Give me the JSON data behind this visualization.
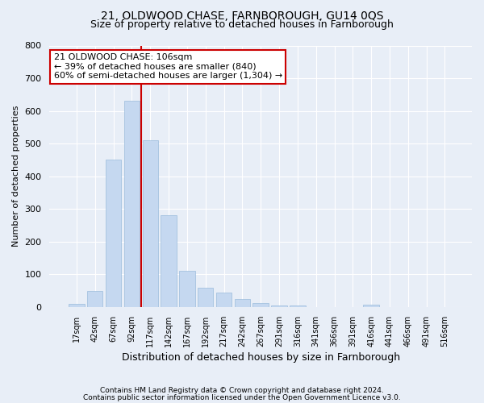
{
  "title": "21, OLDWOOD CHASE, FARNBOROUGH, GU14 0QS",
  "subtitle": "Size of property relative to detached houses in Farnborough",
  "xlabel": "Distribution of detached houses by size in Farnborough",
  "ylabel": "Number of detached properties",
  "footnote1": "Contains HM Land Registry data © Crown copyright and database right 2024.",
  "footnote2": "Contains public sector information licensed under the Open Government Licence v3.0.",
  "bar_labels": [
    "17sqm",
    "42sqm",
    "67sqm",
    "92sqm",
    "117sqm",
    "142sqm",
    "167sqm",
    "192sqm",
    "217sqm",
    "242sqm",
    "267sqm",
    "291sqm",
    "316sqm",
    "341sqm",
    "366sqm",
    "391sqm",
    "416sqm",
    "441sqm",
    "466sqm",
    "491sqm",
    "516sqm"
  ],
  "bar_values": [
    10,
    50,
    450,
    630,
    510,
    280,
    110,
    60,
    45,
    25,
    12,
    5,
    5,
    0,
    0,
    0,
    8,
    0,
    0,
    0,
    0
  ],
  "bar_color": "#c5d8f0",
  "bar_edge_color": "#9bbcdc",
  "ylim": [
    0,
    800
  ],
  "yticks": [
    0,
    100,
    200,
    300,
    400,
    500,
    600,
    700,
    800
  ],
  "vline_x": 3.5,
  "vline_color": "#cc0000",
  "annotation_text": "21 OLDWOOD CHASE: 106sqm\n← 39% of detached houses are smaller (840)\n60% of semi-detached houses are larger (1,304) →",
  "annotation_box_color": "#ffffff",
  "annotation_box_edge": "#cc0000",
  "bg_color": "#e8eef7",
  "plot_bg_color": "#e8eef7",
  "grid_color": "#ffffff",
  "title_fontsize": 10,
  "subtitle_fontsize": 9,
  "annot_fontsize": 8
}
